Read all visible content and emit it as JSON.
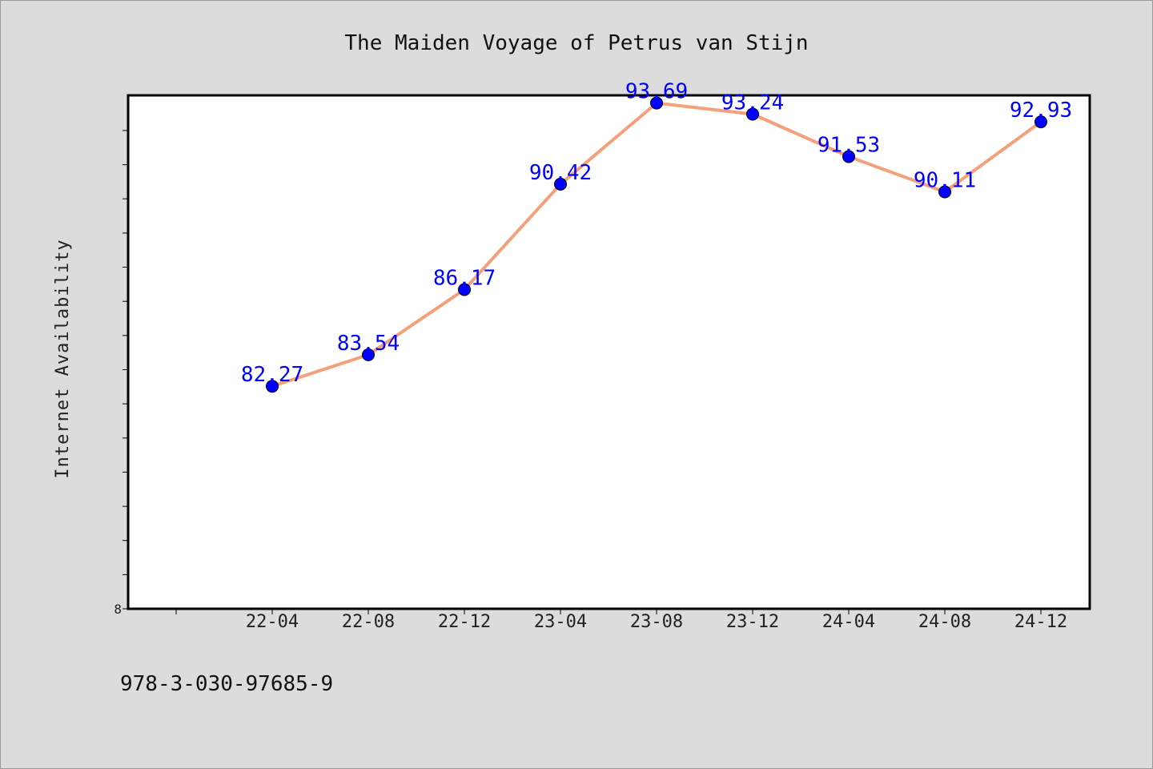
{
  "chart_data": {
    "type": "line",
    "title": "The Maiden Voyage of Petrus van Stijn",
    "xlabel": "",
    "ylabel": "Internet Availability",
    "x_tick_labels": [
      "22-04",
      "22-08",
      "22-12",
      "23-04",
      "23-08",
      "23-12",
      "24-04",
      "24-08",
      "24-12"
    ],
    "y_tick_labels": [
      "8"
    ],
    "series": [
      {
        "x": [
          "22-04",
          "22-08",
          "22-12",
          "23-04",
          "23-08",
          "23-12",
          "24-04",
          "24-08",
          "24-12"
        ],
        "values": [
          82.27,
          83.54,
          86.17,
          90.42,
          93.69,
          93.24,
          91.53,
          90.11,
          92.93
        ],
        "data_labels": [
          "82.27",
          "83.54",
          "86.17",
          "90.42",
          "93.69",
          "93.24",
          "91.53",
          "90.11",
          "92.93"
        ],
        "line_color": "#f4a07a",
        "marker_color": "#0000ff",
        "label_color": "#0000ff"
      }
    ],
    "ylim": [
      73.3,
      94.0
    ],
    "grid": false,
    "legend": "none",
    "plot_background": "#ffffff",
    "figure_background": "#dcdcdc"
  },
  "footer": {
    "isbn": "978-3-030-97685-9"
  }
}
